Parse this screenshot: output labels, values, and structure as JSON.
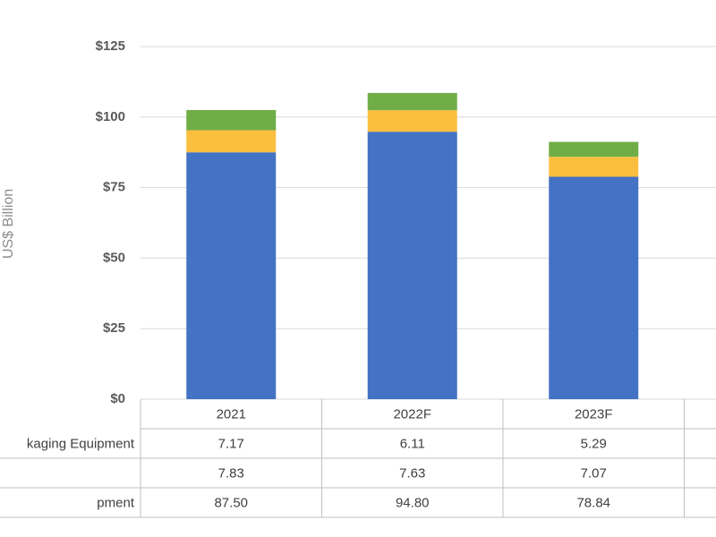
{
  "chart_data": {
    "type": "stacked_bar",
    "y_axis_label": "US$ Billion",
    "categories": [
      "2021",
      "2022F",
      "2023F"
    ],
    "series": [
      {
        "name": "pment",
        "color": "#4472c4",
        "values": [
          87.5,
          94.8,
          78.84
        ],
        "value_labels": [
          "87.50",
          "94.80",
          "78.84"
        ]
      },
      {
        "color": "#fbbf3f",
        "values": [
          7.83,
          7.63,
          7.07
        ],
        "value_labels": [
          "7.83",
          "7.63",
          "7.07"
        ]
      },
      {
        "name": "kaging Equipment",
        "color": "#70ad47",
        "values": [
          7.17,
          6.11,
          5.29
        ],
        "value_labels": [
          "7.17",
          "6.11",
          "5.29"
        ]
      }
    ],
    "ylim": [
      0,
      125
    ],
    "yticks": [
      {
        "value": 0,
        "label": "$0"
      },
      {
        "value": 25,
        "label": "$25"
      },
      {
        "value": 50,
        "label": "$50"
      },
      {
        "value": 75,
        "label": "$75"
      },
      {
        "value": 100,
        "label": "$100"
      },
      {
        "value": 125,
        "label": "$125"
      }
    ],
    "grid": true
  }
}
